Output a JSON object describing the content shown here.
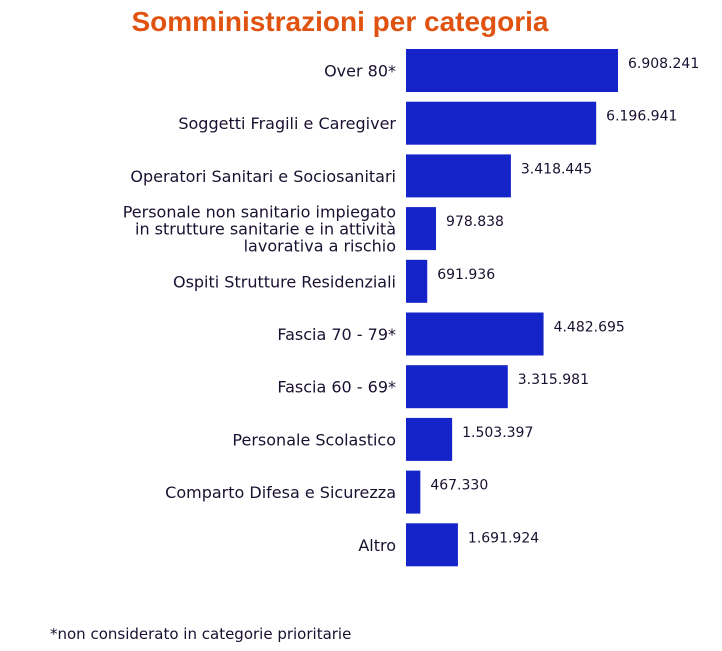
{
  "chart_data": {
    "type": "bar",
    "orientation": "horizontal",
    "title": "Somministrazioni per categoria",
    "xlabel": "",
    "ylabel": "",
    "xlim": [
      0,
      6908241
    ],
    "grid": false,
    "legend": "none",
    "categories": [
      "Over 80*",
      "Soggetti Fragili e Caregiver",
      "Operatori Sanitari e Sociosanitari",
      "Personale non sanitario impiegato in strutture sanitarie e in attività lavorativa a rischio",
      "Ospiti Strutture Residenziali",
      "Fascia 70 - 79*",
      "Fascia 60 - 69*",
      "Personale Scolastico",
      "Comparto Difesa e Sicurezza",
      "Altro"
    ],
    "category_lines": [
      [
        "Over 80*"
      ],
      [
        "Soggetti Fragili e Caregiver"
      ],
      [
        "Operatori Sanitari e Sociosanitari"
      ],
      [
        "Personale non sanitario impiegato",
        "in strutture sanitarie e in attività",
        "lavorativa a rischio"
      ],
      [
        "Ospiti Strutture Residenziali"
      ],
      [
        "Fascia 70 - 79*"
      ],
      [
        "Fascia 60 - 69*"
      ],
      [
        "Personale Scolastico"
      ],
      [
        "Comparto Difesa e Sicurezza"
      ],
      [
        "Altro"
      ]
    ],
    "values": [
      6908241,
      6196941,
      3418445,
      978838,
      691936,
      4482695,
      3315981,
      1503397,
      467330,
      1691924
    ],
    "value_labels": [
      "6.908.241",
      "6.196.941",
      "3.418.445",
      "978.838",
      "691.936",
      "4.482.695",
      "3.315.981",
      "1.503.397",
      "467.330",
      "1.691.924"
    ]
  },
  "footnote": "*non considerato in categorie prioritarie",
  "colors": {
    "title": "#e0520f",
    "bar": "#1424c8",
    "label_text": "#1a1030",
    "value_text": "#1a1030"
  }
}
